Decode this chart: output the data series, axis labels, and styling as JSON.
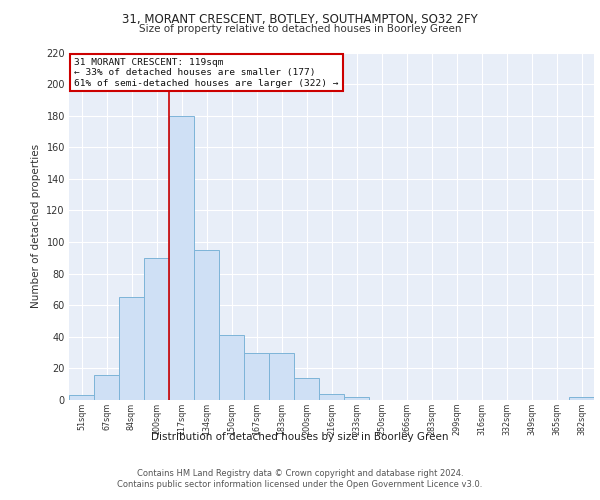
{
  "title1": "31, MORANT CRESCENT, BOTLEY, SOUTHAMPTON, SO32 2FY",
  "title2": "Size of property relative to detached houses in Boorley Green",
  "xlabel": "Distribution of detached houses by size in Boorley Green",
  "ylabel": "Number of detached properties",
  "bar_labels": [
    "51sqm",
    "67sqm",
    "84sqm",
    "100sqm",
    "117sqm",
    "134sqm",
    "150sqm",
    "167sqm",
    "183sqm",
    "200sqm",
    "216sqm",
    "233sqm",
    "250sqm",
    "266sqm",
    "283sqm",
    "299sqm",
    "316sqm",
    "332sqm",
    "349sqm",
    "365sqm",
    "382sqm"
  ],
  "bar_values": [
    3,
    16,
    65,
    90,
    180,
    95,
    41,
    30,
    30,
    14,
    4,
    2,
    0,
    0,
    0,
    0,
    0,
    0,
    0,
    0,
    2
  ],
  "bar_color": "#cfe0f5",
  "bar_edge_color": "#7db4d8",
  "property_bar_index": 4,
  "annotation_line1": "31 MORANT CRESCENT: 119sqm",
  "annotation_line2": "← 33% of detached houses are smaller (177)",
  "annotation_line3": "61% of semi-detached houses are larger (322) →",
  "vline_color": "#cc0000",
  "background_color": "#e8eef8",
  "grid_color": "#ffffff",
  "footnote1": "Contains HM Land Registry data © Crown copyright and database right 2024.",
  "footnote2": "Contains public sector information licensed under the Open Government Licence v3.0.",
  "ylim": [
    0,
    220
  ],
  "yticks": [
    0,
    20,
    40,
    60,
    80,
    100,
    120,
    140,
    160,
    180,
    200,
    220
  ]
}
